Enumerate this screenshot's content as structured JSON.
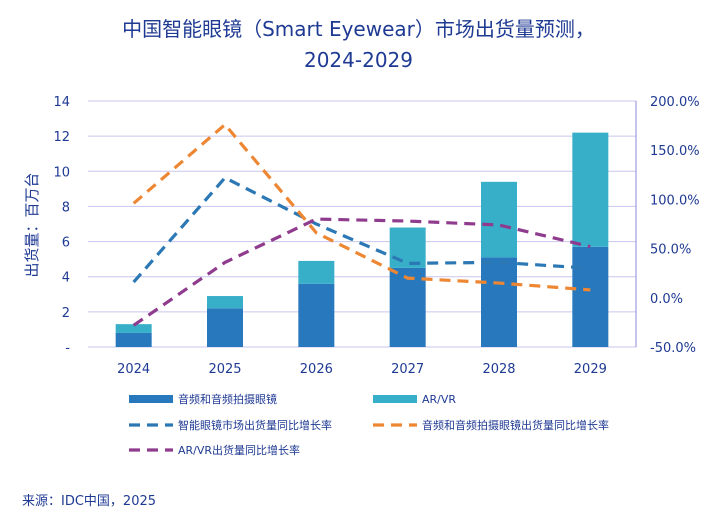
{
  "chart_data": {
    "type": "bar",
    "title_line1": "中国智能眼镜（Smart Eyewear）市场出货量预测，",
    "title_line2": "2024-2029",
    "ylabel": "出货量：百万台",
    "categories": [
      "2024",
      "2025",
      "2026",
      "2027",
      "2028",
      "2029"
    ],
    "bar_series": [
      {
        "name": "音频和音频拍摄眼镜",
        "color": "#2878bd",
        "values": [
          0.8,
          2.2,
          3.6,
          4.5,
          5.1,
          5.7
        ]
      },
      {
        "name": "AR/VR",
        "color": "#38afc9",
        "values": [
          0.5,
          0.7,
          1.3,
          2.3,
          4.3,
          6.5
        ]
      }
    ],
    "line_series": [
      {
        "name": "智能眼镜市场出货量同比增长率",
        "color": "#2b78b5",
        "values": [
          16,
          122,
          75,
          35,
          36,
          30
        ]
      },
      {
        "name": "音频和音频拍摄眼镜出货量同比增长率",
        "color": "#ee8733",
        "values": [
          96,
          176,
          66,
          20,
          15,
          8
        ]
      },
      {
        "name": "AR/VR出货量同比增长率",
        "color": "#8f3b8e",
        "values": [
          -28,
          36,
          80,
          78,
          74,
          52
        ]
      }
    ],
    "ylim": [
      0,
      14
    ],
    "y2lim": [
      -50,
      200
    ],
    "yticks": [
      "-",
      "2",
      "4",
      "6",
      "8",
      "10",
      "12",
      "14"
    ],
    "y2ticks": [
      "-50.0%",
      "0.0%",
      "50.0%",
      "100.0%",
      "150.0%",
      "200.0%"
    ],
    "source": "来源：IDC中国，2025"
  }
}
